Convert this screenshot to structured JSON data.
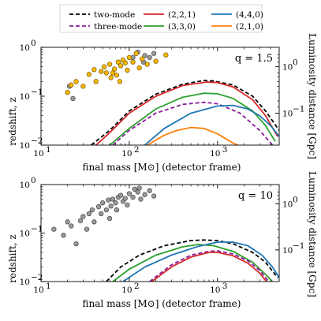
{
  "legend": [
    {
      "label": "two-mode",
      "color": "#000000",
      "dash": true
    },
    {
      "label": "three-mode",
      "color": "#8b1a9c",
      "dash": true
    },
    {
      "label": "(2,2,1)",
      "color": "#d62728",
      "dash": false
    },
    {
      "label": "(3,3,0)",
      "color": "#2ca02c",
      "dash": false
    },
    {
      "label": "(4,4,0)",
      "color": "#1f77b4",
      "dash": false
    },
    {
      "label": "(2,1,0)",
      "color": "#ff7f0e",
      "dash": false
    }
  ],
  "chart_data": [
    {
      "type": "line",
      "annotation": "q = 1.5",
      "xlabel": "final mass [M⊙] (detector frame)",
      "ylabel": "redshift, z",
      "ylabel_right": "Luminosity distance [Gpc]",
      "xscale": "log",
      "yscale": "log",
      "xlim": [
        10,
        5000
      ],
      "ylim": [
        0.01,
        1
      ],
      "x_ticks": [
        {
          "v": 10,
          "t": "10"
        },
        {
          "v": 100,
          "t": "10"
        },
        {
          "v": 1000,
          "t": "10"
        }
      ],
      "x_tick_exp": [
        "1",
        "2",
        "3"
      ],
      "y_ticks": [
        {
          "v": 0.01,
          "t": "10"
        },
        {
          "v": 0.1,
          "t": "10"
        },
        {
          "v": 1,
          "t": "10"
        }
      ],
      "y_tick_exp": [
        "−2",
        "−1",
        "0"
      ],
      "right_ticks": [
        {
          "z": 0.4,
          "t": "10",
          "e": "0"
        },
        {
          "z": 0.045,
          "t": "10",
          "e": "−1"
        }
      ],
      "series": [
        {
          "name": "two-mode",
          "color": "#000000",
          "dash": true,
          "points": [
            [
              37,
              0.01
            ],
            [
              60,
              0.02
            ],
            [
              100,
              0.05
            ],
            [
              200,
              0.11
            ],
            [
              400,
              0.175
            ],
            [
              700,
              0.21
            ],
            [
              900,
              0.205
            ],
            [
              1500,
              0.17
            ],
            [
              2500,
              0.1
            ],
            [
              3500,
              0.05
            ],
            [
              5000,
              0.02
            ]
          ]
        },
        {
          "name": "three-mode",
          "color": "#8b1a9c",
          "dash": true,
          "points": [
            [
              65,
              0.01
            ],
            [
              100,
              0.02
            ],
            [
              200,
              0.045
            ],
            [
              400,
              0.068
            ],
            [
              700,
              0.075
            ],
            [
              1000,
              0.07
            ],
            [
              1800,
              0.045
            ],
            [
              3000,
              0.02
            ],
            [
              4200,
              0.01
            ]
          ]
        },
        {
          "name": "(2,2,1)",
          "color": "#d62728",
          "dash": false,
          "points": [
            [
              42,
              0.01
            ],
            [
              60,
              0.018
            ],
            [
              100,
              0.045
            ],
            [
              200,
              0.1
            ],
            [
              400,
              0.165
            ],
            [
              750,
              0.195
            ],
            [
              1000,
              0.19
            ],
            [
              1500,
              0.155
            ],
            [
              2500,
              0.085
            ],
            [
              3500,
              0.04
            ],
            [
              4800,
              0.015
            ]
          ]
        },
        {
          "name": "(3,3,0)",
          "color": "#2ca02c",
          "dash": false,
          "points": [
            [
              60,
              0.01
            ],
            [
              100,
              0.022
            ],
            [
              200,
              0.055
            ],
            [
              400,
              0.095
            ],
            [
              700,
              0.115
            ],
            [
              1000,
              0.112
            ],
            [
              1500,
              0.09
            ],
            [
              2500,
              0.05
            ],
            [
              3500,
              0.025
            ],
            [
              4500,
              0.012
            ]
          ]
        },
        {
          "name": "(4,4,0)",
          "color": "#1f77b4",
          "dash": false,
          "points": [
            [
              150,
              0.01
            ],
            [
              250,
              0.022
            ],
            [
              500,
              0.045
            ],
            [
              1000,
              0.063
            ],
            [
              1500,
              0.065
            ],
            [
              2200,
              0.055
            ],
            [
              3000,
              0.04
            ],
            [
              4000,
              0.025
            ],
            [
              5000,
              0.015
            ]
          ]
        },
        {
          "name": "(2,1,0)",
          "color": "#ff7f0e",
          "dash": false,
          "points": [
            [
              160,
              0.01
            ],
            [
              250,
              0.016
            ],
            [
              350,
              0.02
            ],
            [
              500,
              0.023
            ],
            [
              700,
              0.022
            ],
            [
              1000,
              0.017
            ],
            [
              1500,
              0.011
            ],
            [
              1700,
              0.01
            ]
          ]
        }
      ],
      "scatter_gold": [
        [
          20,
          0.12
        ],
        [
          22,
          0.17
        ],
        [
          25,
          0.2
        ],
        [
          30,
          0.16
        ],
        [
          35,
          0.28
        ],
        [
          40,
          0.35
        ],
        [
          42,
          0.2
        ],
        [
          48,
          0.32
        ],
        [
          52,
          0.4
        ],
        [
          55,
          0.3
        ],
        [
          60,
          0.45
        ],
        [
          62,
          0.24
        ],
        [
          65,
          0.3
        ],
        [
          68,
          0.36
        ],
        [
          72,
          0.27
        ],
        [
          78,
          0.2
        ],
        [
          80,
          0.42
        ],
        [
          85,
          0.55
        ],
        [
          90,
          0.48
        ],
        [
          95,
          0.34
        ],
        [
          100,
          0.62
        ],
        [
          110,
          0.5
        ],
        [
          120,
          0.75
        ],
        [
          140,
          0.58
        ],
        [
          160,
          0.45
        ],
        [
          200,
          0.52
        ],
        [
          260,
          0.7
        ],
        [
          130,
          0.38
        ],
        [
          75,
          0.5
        ]
      ],
      "scatter_gray": [
        [
          21,
          0.16
        ],
        [
          23,
          0.09
        ],
        [
          110,
          0.62
        ],
        [
          125,
          0.8
        ],
        [
          145,
          0.5
        ],
        [
          170,
          0.62
        ],
        [
          190,
          0.75
        ],
        [
          150,
          0.68
        ]
      ]
    },
    {
      "type": "line",
      "annotation": "q = 10",
      "xlabel": "final mass [M⊙] (detector frame)",
      "ylabel": "redshift, z",
      "ylabel_right": "Luminosity distance [Gpc]",
      "xscale": "log",
      "yscale": "log",
      "xlim": [
        10,
        5000
      ],
      "ylim": [
        0.01,
        1
      ],
      "x_ticks": [
        {
          "v": 10,
          "t": "10"
        },
        {
          "v": 100,
          "t": "10"
        },
        {
          "v": 1000,
          "t": "10"
        }
      ],
      "x_tick_exp": [
        "1",
        "2",
        "3"
      ],
      "y_ticks": [
        {
          "v": 0.01,
          "t": "10"
        },
        {
          "v": 0.1,
          "t": "10"
        },
        {
          "v": 1,
          "t": "10"
        }
      ],
      "y_tick_exp": [
        "−2",
        "−1",
        "0"
      ],
      "right_ticks": [
        {
          "z": 0.4,
          "t": "10",
          "e": "0"
        },
        {
          "z": 0.045,
          "t": "10",
          "e": "−1"
        }
      ],
      "series": [
        {
          "name": "two-mode",
          "color": "#000000",
          "dash": true,
          "points": [
            [
              55,
              0.01
            ],
            [
              80,
              0.02
            ],
            [
              130,
              0.035
            ],
            [
              250,
              0.055
            ],
            [
              500,
              0.07
            ],
            [
              700,
              0.072
            ],
            [
              1000,
              0.07
            ],
            [
              1500,
              0.06
            ],
            [
              2500,
              0.04
            ],
            [
              3500,
              0.025
            ],
            [
              4800,
              0.012
            ]
          ]
        },
        {
          "name": "(3,3,0)",
          "color": "#2ca02c",
          "dash": false,
          "points": [
            [
              65,
              0.01
            ],
            [
              100,
              0.018
            ],
            [
              200,
              0.035
            ],
            [
              400,
              0.052
            ],
            [
              600,
              0.058
            ],
            [
              900,
              0.055
            ],
            [
              1500,
              0.042
            ],
            [
              2500,
              0.025
            ],
            [
              3500,
              0.014
            ],
            [
              4200,
              0.01
            ]
          ]
        },
        {
          "name": "(4,4,0)",
          "color": "#1f77b4",
          "dash": false,
          "points": [
            [
              85,
              0.01
            ],
            [
              150,
              0.02
            ],
            [
              300,
              0.035
            ],
            [
              600,
              0.053
            ],
            [
              1000,
              0.065
            ],
            [
              1500,
              0.065
            ],
            [
              2200,
              0.055
            ],
            [
              3200,
              0.035
            ],
            [
              4200,
              0.02
            ],
            [
              5000,
              0.012
            ]
          ]
        },
        {
          "name": "three-mode",
          "color": "#8b1a9c",
          "dash": true,
          "points": [
            [
              170,
              0.01
            ],
            [
              300,
              0.022
            ],
            [
              500,
              0.035
            ],
            [
              800,
              0.042
            ],
            [
              1000,
              0.043
            ],
            [
              1500,
              0.037
            ],
            [
              2200,
              0.027
            ],
            [
              3000,
              0.017
            ],
            [
              3800,
              0.01
            ]
          ]
        },
        {
          "name": "(2,2,1)",
          "color": "#d62728",
          "dash": false,
          "points": [
            [
              180,
              0.01
            ],
            [
              300,
              0.02
            ],
            [
              500,
              0.032
            ],
            [
              800,
              0.04
            ],
            [
              1000,
              0.04
            ],
            [
              1500,
              0.034
            ],
            [
              2200,
              0.024
            ],
            [
              3000,
              0.015
            ],
            [
              3600,
              0.01
            ]
          ]
        }
      ],
      "scatter_gold": [],
      "scatter_gray": [
        [
          14,
          0.12
        ],
        [
          18,
          0.09
        ],
        [
          20,
          0.17
        ],
        [
          22,
          0.14
        ],
        [
          25,
          0.06
        ],
        [
          28,
          0.18
        ],
        [
          30,
          0.22
        ],
        [
          33,
          0.12
        ],
        [
          35,
          0.25
        ],
        [
          38,
          0.3
        ],
        [
          40,
          0.17
        ],
        [
          45,
          0.35
        ],
        [
          48,
          0.25
        ],
        [
          50,
          0.42
        ],
        [
          55,
          0.3
        ],
        [
          58,
          0.48
        ],
        [
          60,
          0.2
        ],
        [
          62,
          0.36
        ],
        [
          65,
          0.5
        ],
        [
          70,
          0.42
        ],
        [
          72,
          0.3
        ],
        [
          75,
          0.55
        ],
        [
          80,
          0.6
        ],
        [
          85,
          0.45
        ],
        [
          90,
          0.52
        ],
        [
          95,
          0.38
        ],
        [
          100,
          0.65
        ],
        [
          110,
          0.55
        ],
        [
          115,
          0.8
        ],
        [
          125,
          0.7
        ],
        [
          135,
          0.5
        ],
        [
          150,
          0.62
        ],
        [
          170,
          0.75
        ],
        [
          190,
          0.58
        ],
        [
          130,
          0.85
        ]
      ]
    }
  ]
}
